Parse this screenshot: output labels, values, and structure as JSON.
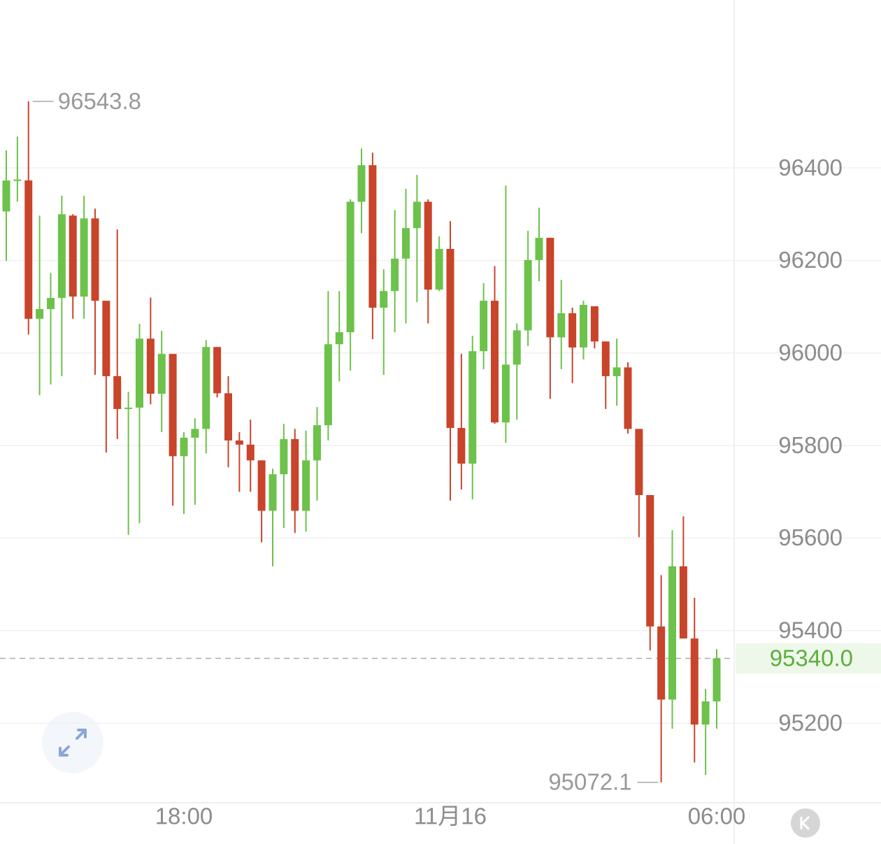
{
  "chart_data": {
    "type": "candlestick",
    "categories": [
      null,
      null,
      null,
      null,
      null,
      null,
      null,
      null,
      null,
      null,
      null,
      null,
      null,
      null,
      null,
      null,
      "18:00",
      null,
      null,
      null,
      null,
      null,
      null,
      null,
      null,
      null,
      null,
      null,
      null,
      null,
      null,
      null,
      null,
      null,
      null,
      null,
      null,
      null,
      null,
      null,
      "11月16",
      null,
      null,
      null,
      null,
      null,
      null,
      null,
      null,
      null,
      null,
      null,
      null,
      null,
      null,
      null,
      null,
      null,
      null,
      null,
      null,
      null,
      null,
      null,
      "06:00"
    ],
    "open": [
      96306,
      96372,
      96373,
      96074,
      96095,
      96119,
      96297,
      96122,
      96291,
      96113,
      95950,
      95879,
      95882,
      96031,
      95912,
      95998,
      95777,
      95817,
      95836,
      96013,
      95913,
      95811,
      95802,
      95768,
      95659,
      95738,
      95814,
      95659,
      95768,
      95844,
      96019,
      96045,
      96327,
      96406,
      96098,
      96134,
      96204,
      96270,
      96327,
      96137,
      96225,
      95838,
      95761,
      96004,
      96113,
      95850,
      95975,
      96049,
      96201,
      96249,
      96034,
      96086,
      96012,
      96101,
      96025,
      95950,
      95969,
      95836,
      95693,
      95409,
      95251,
      95539,
      95383,
      95197,
      95247
    ],
    "high": [
      96438,
      96468,
      96543.8,
      96297,
      96173,
      96340,
      96300,
      96340,
      96312,
      96113,
      96267,
      95916,
      96063,
      96120,
      96048,
      95998,
      95829,
      95859,
      96028,
      96013,
      95950,
      95829,
      95856,
      95768,
      95750,
      95847,
      95836,
      95832,
      95883,
      96134,
      96134,
      96332,
      96442,
      96433,
      96181,
      96309,
      96355,
      96385,
      96332,
      96252,
      96285,
      95998,
      96037,
      96151,
      96188,
      96362,
      96064,
      96264,
      96314,
      96249,
      96158,
      96098,
      96113,
      96101,
      96025,
      96031,
      95980,
      95836,
      95693,
      95520,
      95617,
      95647,
      95471,
      95274,
      95360
    ],
    "low": [
      96199,
      96327,
      96040,
      95909,
      95932,
      95950,
      96074,
      96074,
      95953,
      95785,
      95814,
      95607,
      95632,
      95889,
      95829,
      95670,
      95652,
      95672,
      95783,
      95904,
      95753,
      95700,
      95700,
      95591,
      95539,
      95622,
      95611,
      95614,
      95681,
      95811,
      95939,
      95962,
      96259,
      96030,
      95953,
      96045,
      96064,
      96110,
      96064,
      96134,
      95681,
      95705,
      95684,
      95965,
      95847,
      95806,
      95856,
      96015,
      96155,
      95901,
      95965,
      95935,
      95986,
      96010,
      95879,
      95886,
      95826,
      95602,
      95357,
      95072.1,
      95188,
      95383,
      95115,
      95088,
      95188
    ],
    "close": [
      96373,
      96375,
      96074,
      96095,
      96119,
      96300,
      96122,
      96291,
      96113,
      95950,
      95879,
      95882,
      96031,
      95912,
      95998,
      95777,
      95817,
      95836,
      96013,
      95913,
      95811,
      95802,
      95768,
      95659,
      95738,
      95814,
      95659,
      95768,
      95844,
      96019,
      96045,
      96327,
      96406,
      96098,
      96134,
      96204,
      96270,
      96327,
      96137,
      96225,
      95838,
      95761,
      96004,
      96113,
      95850,
      95975,
      96049,
      96201,
      96249,
      96034,
      96086,
      96012,
      96104,
      96025,
      95950,
      95969,
      95836,
      95693,
      95409,
      95251,
      95539,
      95383,
      95197,
      95247,
      95340
    ],
    "up_color": "#6cc24a",
    "down_color": "#c8442a",
    "last_price": {
      "value": 95340,
      "label": "95340.0"
    },
    "ylim": [
      95028,
      96763
    ],
    "yticks": [
      95200,
      95400,
      95600,
      95800,
      96000,
      96200,
      96400
    ],
    "grid": true
  }
}
